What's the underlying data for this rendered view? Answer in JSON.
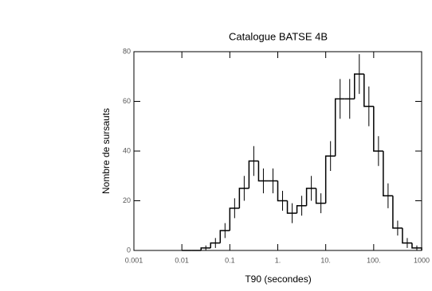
{
  "chart_data": {
    "type": "histogram",
    "title": "Catalogue BATSE 4B",
    "x_label": "T90 (secondes)",
    "y_label": "Nombre de sursauts",
    "xscale": "log",
    "color": "#000000",
    "bins": [
      0.01,
      0.01585,
      0.02512,
      0.03981,
      0.0631,
      0.1,
      0.1585,
      0.2512,
      0.3981,
      0.631,
      1,
      1.585,
      2.512,
      3.981,
      6.31,
      10,
      15.85,
      25.12,
      39.81,
      63.1,
      100,
      158.5,
      251.2,
      398.1,
      631,
      1000
    ],
    "counts": [
      0,
      0,
      1,
      3,
      8,
      17,
      25,
      36,
      28,
      28,
      20,
      15,
      18,
      25,
      19,
      38,
      61,
      61,
      71,
      58,
      40,
      22,
      9,
      3,
      1
    ],
    "errors": [
      0,
      0,
      1,
      2,
      3,
      4,
      5,
      6,
      5,
      5,
      4,
      4,
      4,
      5,
      4,
      6,
      8,
      8,
      8,
      8,
      6,
      5,
      3,
      2,
      1
    ],
    "xlim": [
      0.001,
      1000
    ],
    "xticks": [
      0.001,
      0.01,
      0.1,
      {
        "value": 1,
        "label": "1."
      },
      {
        "value": 10,
        "label": "10."
      },
      {
        "value": 100,
        "label": "100."
      },
      1000
    ],
    "ylim": [
      0,
      80
    ],
    "yticks": [
      0,
      20,
      40,
      60,
      80
    ]
  }
}
